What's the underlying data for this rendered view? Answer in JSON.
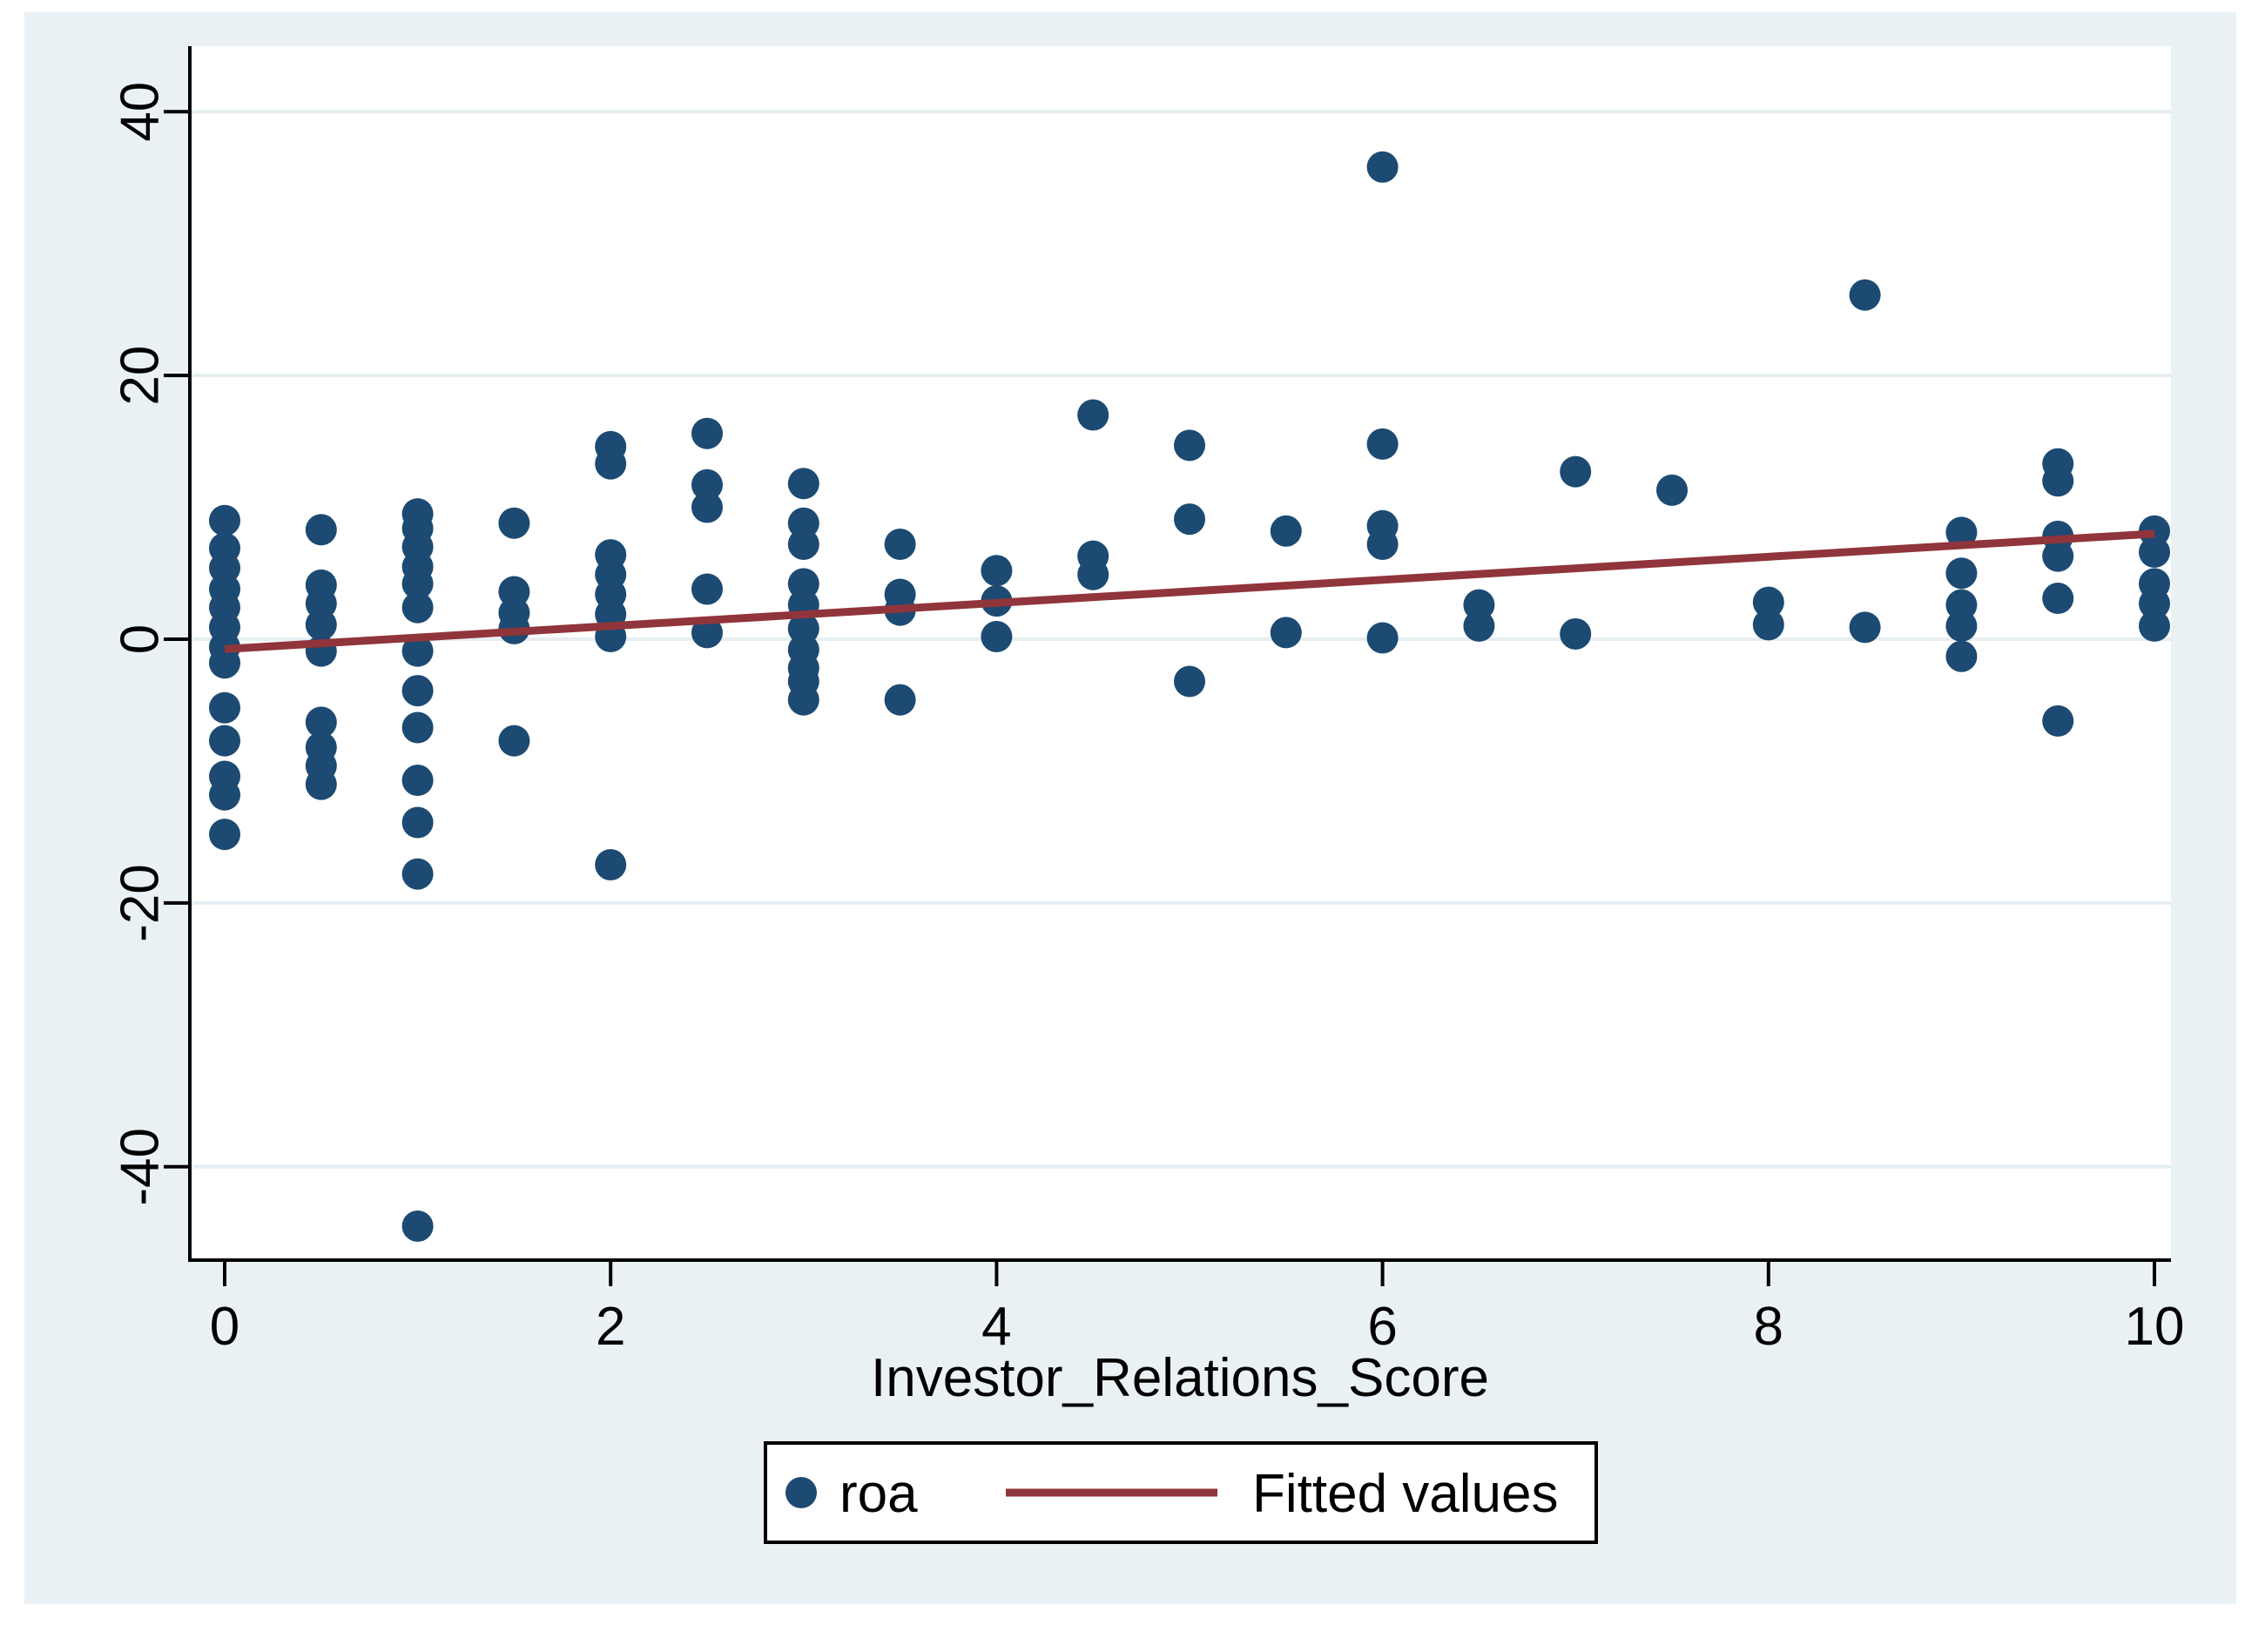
{
  "chart_data": {
    "type": "scatter",
    "title": "",
    "xlabel": "Investor_Relations_Score",
    "ylabel": "",
    "xlim": [
      0,
      10
    ],
    "ylim": [
      -47,
      45
    ],
    "grid": "horizontal",
    "x_ticks": [
      0,
      2,
      4,
      6,
      8,
      10
    ],
    "y_ticks": [
      40,
      20,
      0,
      -20,
      -40
    ],
    "legend_position": "bottom-center",
    "series": [
      {
        "name": "roa",
        "type": "scatter",
        "points": [
          [
            0,
            9.0
          ],
          [
            0,
            6.9
          ],
          [
            0,
            5.4
          ],
          [
            0,
            3.8
          ],
          [
            0,
            2.4
          ],
          [
            0,
            0.9
          ],
          [
            0,
            -0.6
          ],
          [
            0,
            -1.8
          ],
          [
            0,
            -5.2
          ],
          [
            0,
            -7.7
          ],
          [
            0,
            -10.4
          ],
          [
            0,
            -11.8
          ],
          [
            0,
            -14.8
          ],
          [
            0.5,
            8.3
          ],
          [
            0.5,
            4.1
          ],
          [
            0.5,
            2.7
          ],
          [
            0.5,
            1.1
          ],
          [
            0.5,
            -0.9
          ],
          [
            0.5,
            -6.3
          ],
          [
            0.5,
            -8.2
          ],
          [
            0.5,
            -9.6
          ],
          [
            0.5,
            -11.0
          ],
          [
            1,
            9.5
          ],
          [
            1,
            8.4
          ],
          [
            1,
            7.0
          ],
          [
            1,
            5.5
          ],
          [
            1,
            4.2
          ],
          [
            1,
            2.4
          ],
          [
            1,
            -0.9
          ],
          [
            1,
            -3.9
          ],
          [
            1,
            -6.7
          ],
          [
            1,
            -10.7
          ],
          [
            1,
            -13.9
          ],
          [
            1,
            -17.8
          ],
          [
            1,
            -44.5
          ],
          [
            1.5,
            8.8
          ],
          [
            1.5,
            3.6
          ],
          [
            1.5,
            2.0
          ],
          [
            1.5,
            0.8
          ],
          [
            1.5,
            -7.7
          ],
          [
            2,
            14.6
          ],
          [
            2,
            13.3
          ],
          [
            2,
            6.4
          ],
          [
            2,
            4.9
          ],
          [
            2,
            3.4
          ],
          [
            2,
            1.9
          ],
          [
            2,
            0.2
          ],
          [
            2,
            -17.1
          ],
          [
            2.5,
            15.6
          ],
          [
            2.5,
            11.7
          ],
          [
            2.5,
            10.0
          ],
          [
            2.5,
            3.8
          ],
          [
            2.5,
            0.5
          ],
          [
            3,
            11.8
          ],
          [
            3,
            8.8
          ],
          [
            3,
            7.2
          ],
          [
            3,
            4.2
          ],
          [
            3,
            2.6
          ],
          [
            3,
            0.8
          ],
          [
            3,
            -0.8
          ],
          [
            3,
            -2.2
          ],
          [
            3,
            -3.2
          ],
          [
            3,
            -4.6
          ],
          [
            3.5,
            7.2
          ],
          [
            3.5,
            3.4
          ],
          [
            3.5,
            2.2
          ],
          [
            3.5,
            -4.6
          ],
          [
            4,
            5.2
          ],
          [
            4,
            2.9
          ],
          [
            4,
            0.2
          ],
          [
            4.5,
            17.0
          ],
          [
            4.5,
            6.3
          ],
          [
            4.5,
            4.9
          ],
          [
            5,
            14.7
          ],
          [
            5,
            9.1
          ],
          [
            5,
            -3.2
          ],
          [
            5.5,
            8.2
          ],
          [
            5.5,
            0.5
          ],
          [
            6,
            35.8
          ],
          [
            6,
            14.8
          ],
          [
            6,
            8.6
          ],
          [
            6,
            7.2
          ],
          [
            6,
            0.1
          ],
          [
            6.5,
            2.6
          ],
          [
            6.5,
            1.0
          ],
          [
            7,
            12.7
          ],
          [
            7,
            0.4
          ],
          [
            7.5,
            11.3
          ],
          [
            8,
            2.8
          ],
          [
            8,
            1.1
          ],
          [
            8.5,
            26.1
          ],
          [
            8.5,
            0.9
          ],
          [
            9,
            8.1
          ],
          [
            9,
            5.0
          ],
          [
            9,
            2.6
          ],
          [
            9,
            1.0
          ],
          [
            9,
            -1.3
          ],
          [
            9.5,
            13.3
          ],
          [
            9.5,
            12.0
          ],
          [
            9.5,
            7.8
          ],
          [
            9.5,
            6.3
          ],
          [
            9.5,
            3.1
          ],
          [
            9.5,
            -6.2
          ],
          [
            10,
            8.2
          ],
          [
            10,
            6.6
          ],
          [
            10,
            4.2
          ],
          [
            10,
            2.7
          ],
          [
            10,
            1.0
          ]
        ]
      },
      {
        "name": "Fitted values",
        "type": "line",
        "endpoints": [
          [
            0,
            -0.75
          ],
          [
            10,
            8.0
          ]
        ]
      }
    ]
  },
  "legend": {
    "items": [
      {
        "label": "roa",
        "marker": "dot-marker"
      },
      {
        "label": "Fitted values",
        "marker": "line-marker"
      }
    ]
  },
  "colors": {
    "dot": "#1C4A72",
    "fit_line": "#90353B",
    "graph_background": "#EAF1F4",
    "plot_background": "#FFFFFF",
    "gridline": "#E6EEF2",
    "axis": "#000000",
    "legend_border": "#000000",
    "legend_background": "#FFFFFF"
  }
}
